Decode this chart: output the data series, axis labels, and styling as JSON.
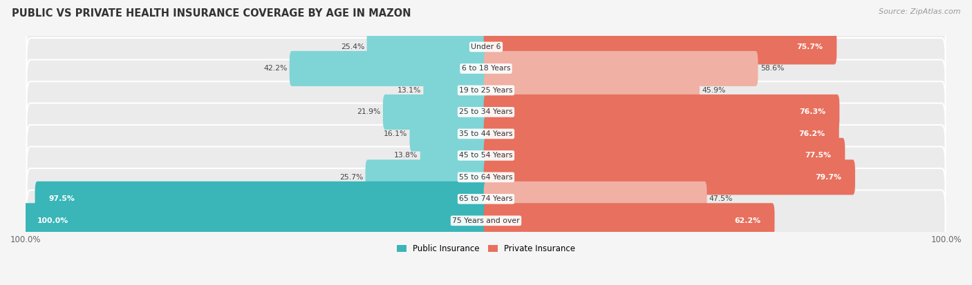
{
  "title": "Public vs Private Health Insurance Coverage by Age in Mazon",
  "source": "Source: ZipAtlas.com",
  "categories": [
    "Under 6",
    "6 to 18 Years",
    "19 to 25 Years",
    "25 to 34 Years",
    "35 to 44 Years",
    "45 to 54 Years",
    "55 to 64 Years",
    "65 to 74 Years",
    "75 Years and over"
  ],
  "public": [
    25.4,
    42.2,
    13.1,
    21.9,
    16.1,
    13.8,
    25.7,
    97.5,
    100.0
  ],
  "private": [
    75.7,
    58.6,
    45.9,
    76.3,
    76.2,
    77.5,
    79.7,
    47.5,
    62.2
  ],
  "public_color_strong": "#3ab5b8",
  "public_color_light": "#7fd4d6",
  "private_color_strong": "#e8705e",
  "private_color_light": "#f0b0a4",
  "row_bg_color": "#ebebeb",
  "bg_color": "#f5f5f5",
  "title_color": "#333333",
  "center_label_color": "#555555",
  "max_val": 100.0,
  "bar_height": 0.62,
  "legend_public": "Public Insurance",
  "legend_private": "Private Insurance",
  "strong_threshold_pub": 50.0,
  "strong_threshold_priv": 60.0
}
